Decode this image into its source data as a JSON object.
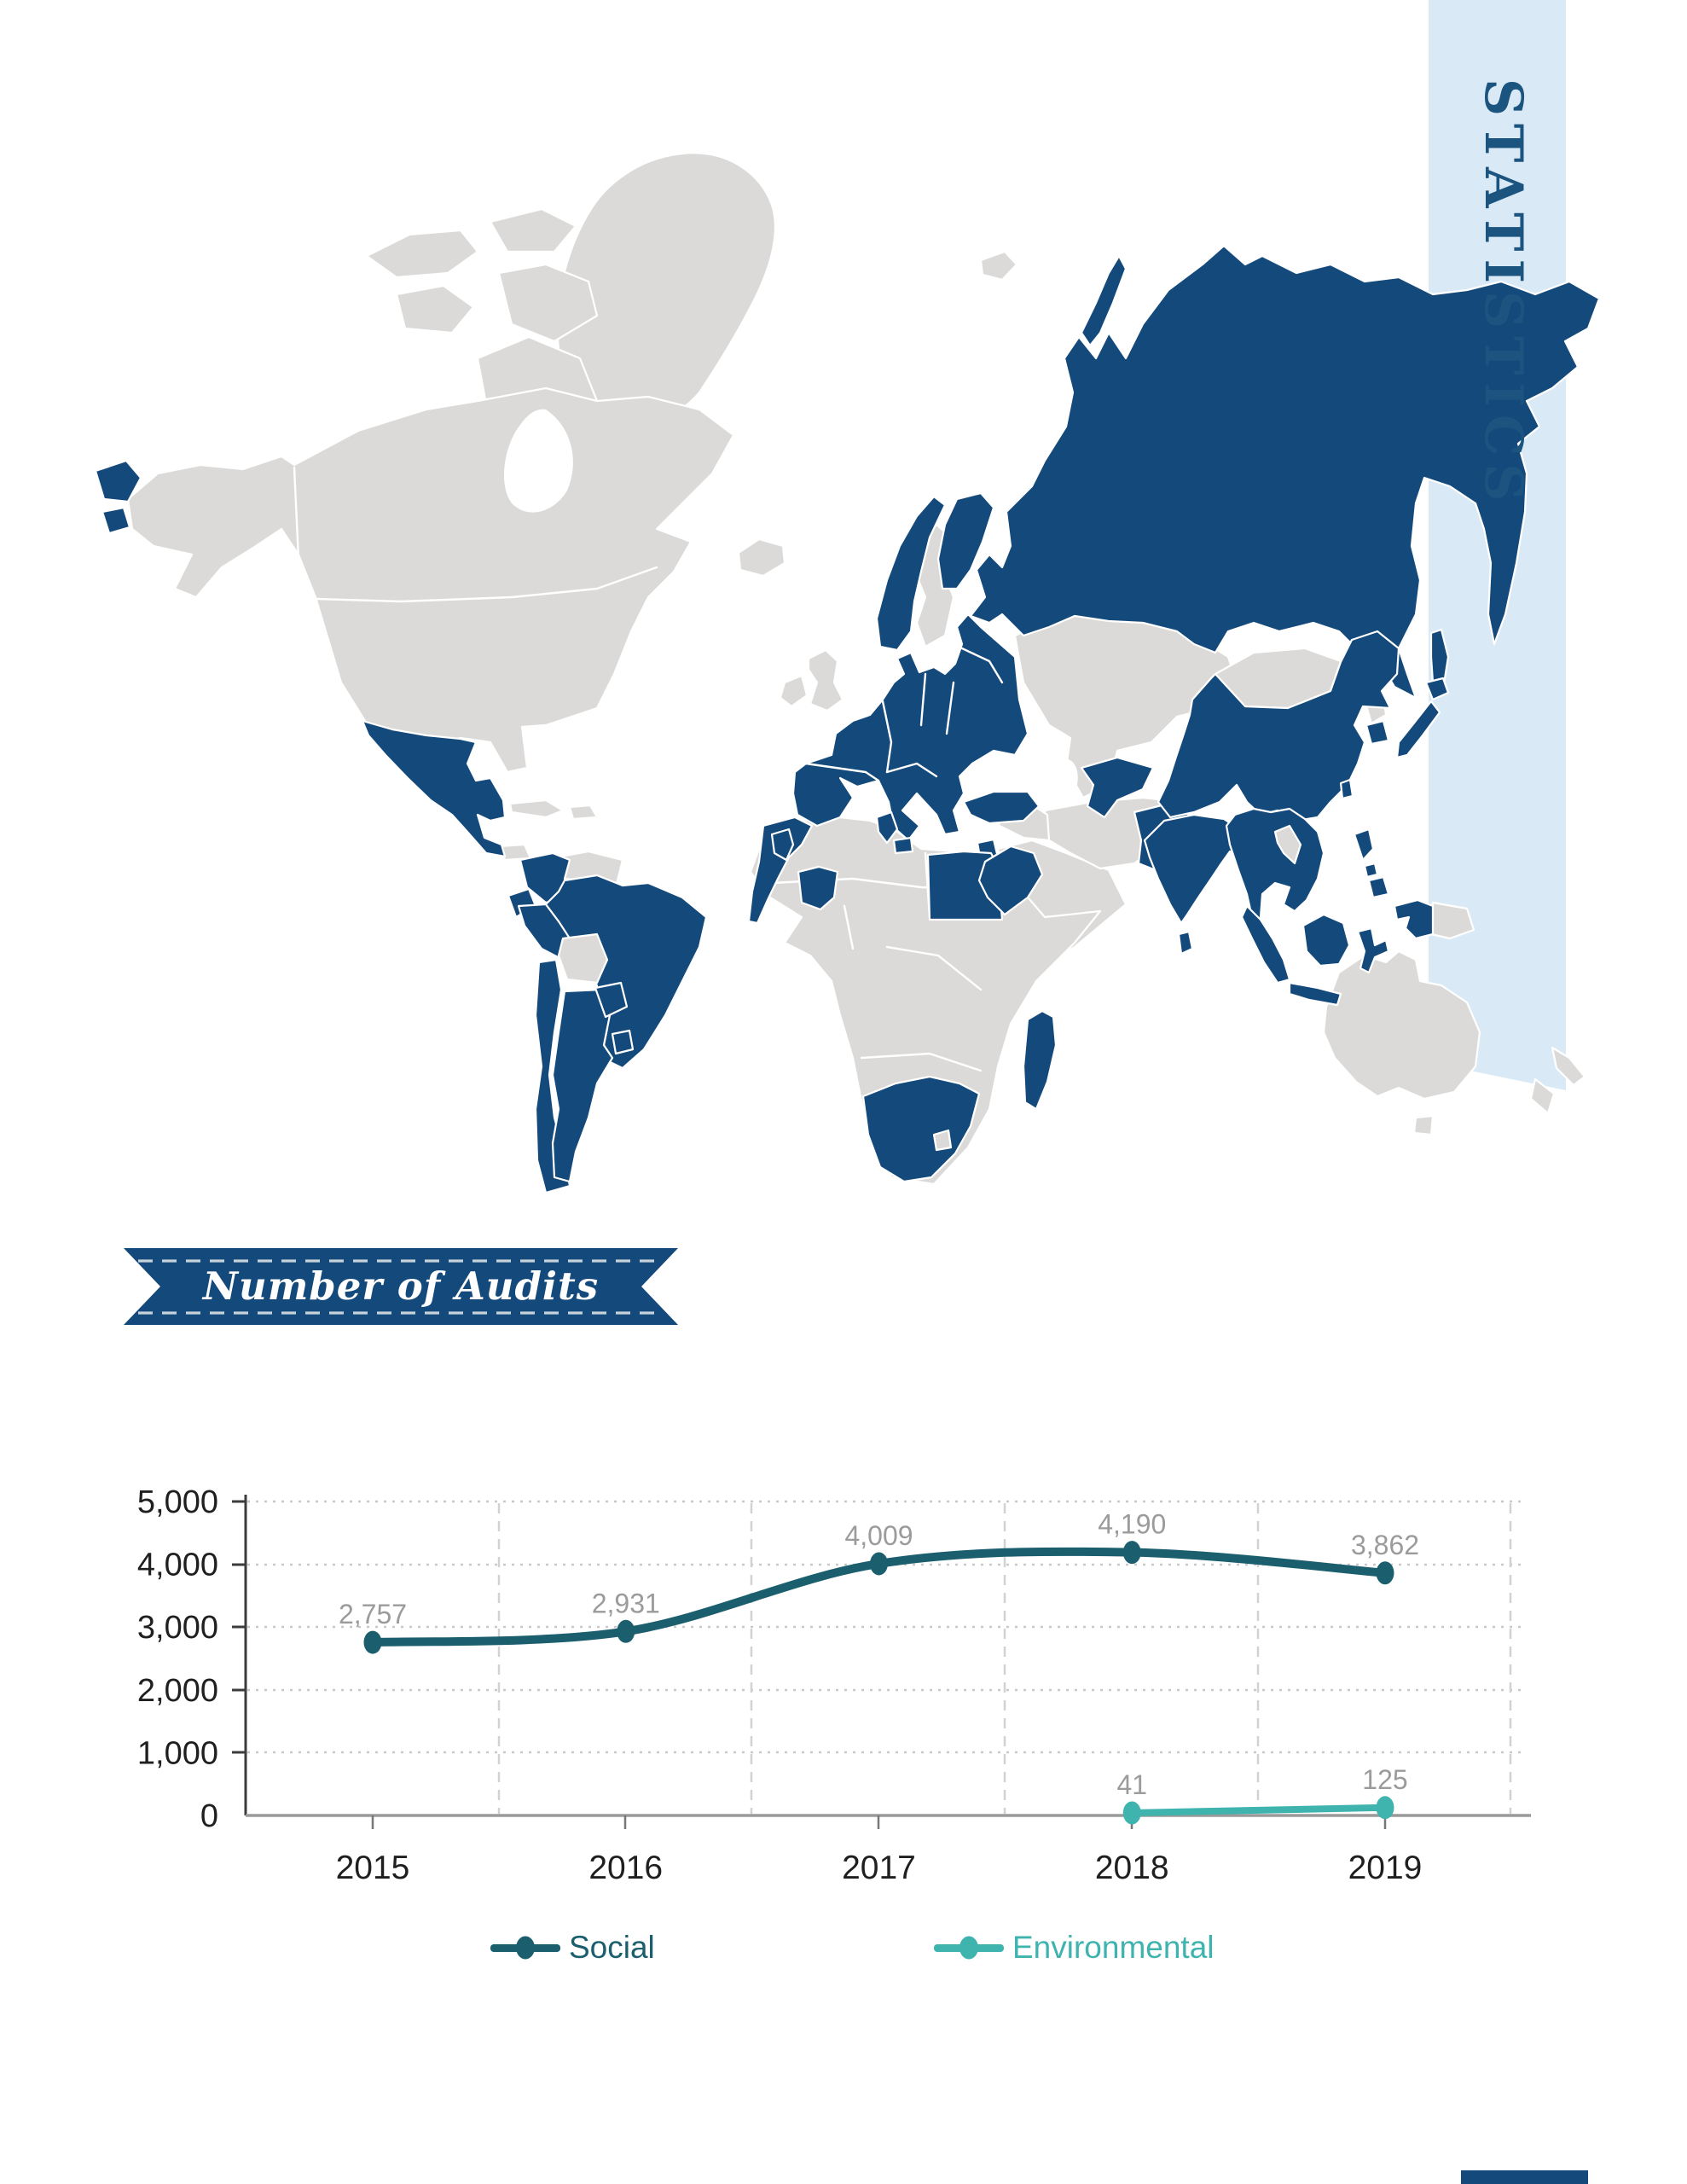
{
  "page": {
    "vertical_title": "STATISTICS",
    "band_color": "#d9eaf6",
    "accent_color": "#14497b"
  },
  "map": {
    "base_color": "#dbdad8",
    "highlight_color": "#14497b",
    "highlighted_regions": [
      "Mexico",
      "Guatemala",
      "Nicaragua",
      "Colombia",
      "Ecuador",
      "Peru",
      "Brazil",
      "Chile",
      "Argentina",
      "Paraguay",
      "Uruguay",
      "Portugal",
      "Spain",
      "France",
      "Germany",
      "Italy",
      "Poland",
      "Norway",
      "Finland",
      "Baltic states",
      "Ukraine",
      "Balkans",
      "Greece",
      "Turkey",
      "Russia",
      "Morocco",
      "Tunisia",
      "Egypt",
      "Senegal",
      "Ivory Coast",
      "Ethiopia",
      "South Africa",
      "Madagascar",
      "Israel-Jordan",
      "Uzbekistan",
      "Pakistan",
      "India",
      "Sri Lanka",
      "China",
      "South Korea",
      "Japan",
      "Taiwan",
      "Myanmar",
      "Thailand",
      "Vietnam",
      "Cambodia",
      "Malaysia",
      "Indonesia",
      "Philippines",
      "West Papua"
    ]
  },
  "ribbon": {
    "label": "Number of Audits",
    "color": "#14497b"
  },
  "chart_data": {
    "type": "line",
    "title": "Number of Audits",
    "categories": [
      "2015",
      "2016",
      "2017",
      "2018",
      "2019"
    ],
    "series": [
      {
        "name": "Social",
        "color": "#1b5f6e",
        "values": [
          2757,
          2931,
          4009,
          4190,
          3862
        ],
        "labels": [
          "2,757",
          "2,931",
          "4,009",
          "4,190",
          "3,862"
        ],
        "smooth": true
      },
      {
        "name": "Environmental",
        "color": "#3fb3ae",
        "values": [
          null,
          null,
          null,
          41,
          125
        ],
        "labels": [
          "",
          "",
          "",
          "41",
          "125"
        ],
        "smooth": false
      }
    ],
    "ylim": [
      0,
      5000
    ],
    "yticks": [
      "0",
      "1,000",
      "2,000",
      "3,000",
      "4,000",
      "5,000"
    ],
    "grid": true,
    "legend_position": "bottom",
    "label_color": "#9b9b9b",
    "axis_text_color": "#1f1f1f"
  }
}
